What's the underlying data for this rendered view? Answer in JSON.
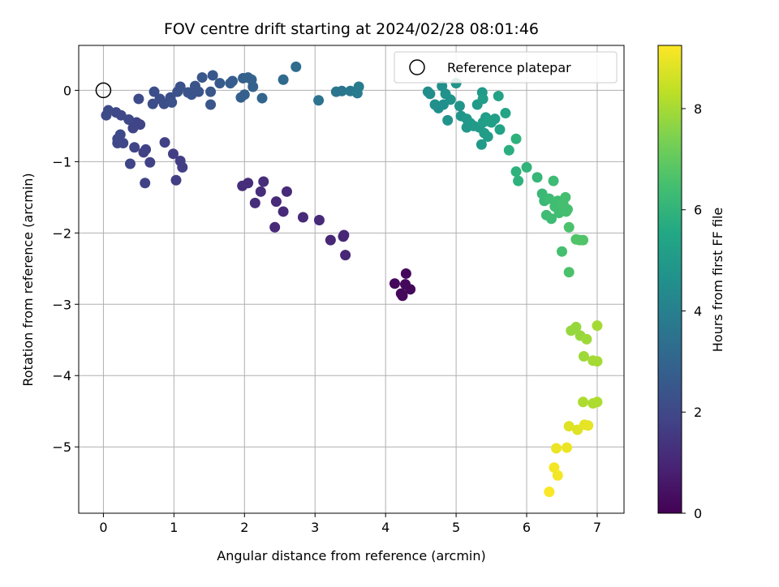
{
  "chart_data": {
    "type": "scatter",
    "title": "FOV centre drift starting at 2024/02/28 08:01:46",
    "xlabel": "Angular distance from reference (arcmin)",
    "ylabel": "Rotation from reference (arcmin)",
    "xlim": [
      -0.35,
      7.38
    ],
    "ylim": [
      -5.93,
      0.63
    ],
    "xticks": [
      0,
      1,
      2,
      3,
      4,
      5,
      6,
      7
    ],
    "yticks": [
      0,
      -1,
      -2,
      -3,
      -4,
      -5
    ],
    "grid": true,
    "legend": {
      "placement": "top-right",
      "entries": [
        "Reference platepar"
      ]
    },
    "reference_point": {
      "x": 0,
      "y": 0
    },
    "colorbar": {
      "label": "Hours from first FF file",
      "colormap": "viridis",
      "range": [
        0,
        9.25
      ],
      "ticks": [
        0,
        2,
        4,
        6,
        8
      ]
    },
    "points": [
      {
        "x": 4.13,
        "y": -2.71,
        "h": 0.2
      },
      {
        "x": 4.22,
        "y": -2.85,
        "h": 0.2
      },
      {
        "x": 4.28,
        "y": -2.72,
        "h": 0.2
      },
      {
        "x": 4.29,
        "y": -2.57,
        "h": 0.2
      },
      {
        "x": 4.35,
        "y": -2.79,
        "h": 0.2
      },
      {
        "x": 4.24,
        "y": -2.88,
        "h": 0.2
      },
      {
        "x": 3.43,
        "y": -2.31,
        "h": 1.0
      },
      {
        "x": 3.41,
        "y": -2.03,
        "h": 1.0
      },
      {
        "x": 3.4,
        "y": -2.05,
        "h": 1.0
      },
      {
        "x": 3.22,
        "y": -2.1,
        "h": 1.0
      },
      {
        "x": 3.06,
        "y": -1.82,
        "h": 1.1
      },
      {
        "x": 2.83,
        "y": -1.78,
        "h": 1.1
      },
      {
        "x": 2.55,
        "y": -1.7,
        "h": 1.1
      },
      {
        "x": 2.6,
        "y": -1.42,
        "h": 1.1
      },
      {
        "x": 2.43,
        "y": -1.92,
        "h": 1.1
      },
      {
        "x": 2.45,
        "y": -1.56,
        "h": 1.1
      },
      {
        "x": 2.27,
        "y": -1.28,
        "h": 1.2
      },
      {
        "x": 2.23,
        "y": -1.42,
        "h": 1.2
      },
      {
        "x": 2.15,
        "y": -1.58,
        "h": 1.2
      },
      {
        "x": 2.05,
        "y": -1.3,
        "h": 1.2
      },
      {
        "x": 1.97,
        "y": -1.34,
        "h": 1.2
      },
      {
        "x": 1.12,
        "y": -1.08,
        "h": 1.7
      },
      {
        "x": 1.09,
        "y": -0.99,
        "h": 1.7
      },
      {
        "x": 1.03,
        "y": -1.26,
        "h": 1.7
      },
      {
        "x": 0.99,
        "y": -0.89,
        "h": 1.7
      },
      {
        "x": 0.87,
        "y": -0.73,
        "h": 1.8
      },
      {
        "x": 0.66,
        "y": -1.01,
        "h": 1.8
      },
      {
        "x": 0.6,
        "y": -0.83,
        "h": 1.8
      },
      {
        "x": 0.57,
        "y": -0.87,
        "h": 1.8
      },
      {
        "x": 0.59,
        "y": -1.3,
        "h": 1.8
      },
      {
        "x": 0.44,
        "y": -0.8,
        "h": 1.9
      },
      {
        "x": 0.38,
        "y": -1.03,
        "h": 1.9
      },
      {
        "x": 0.52,
        "y": -0.48,
        "h": 1.9
      },
      {
        "x": 0.47,
        "y": -0.45,
        "h": 1.9
      },
      {
        "x": 0.42,
        "y": -0.53,
        "h": 1.9
      },
      {
        "x": 0.36,
        "y": -0.41,
        "h": 2.0
      },
      {
        "x": 0.28,
        "y": -0.74,
        "h": 2.0
      },
      {
        "x": 0.24,
        "y": -0.62,
        "h": 2.0
      },
      {
        "x": 0.2,
        "y": -0.74,
        "h": 2.0
      },
      {
        "x": 0.2,
        "y": -0.68,
        "h": 2.0
      },
      {
        "x": 0.25,
        "y": -0.35,
        "h": 2.0
      },
      {
        "x": 0.18,
        "y": -0.31,
        "h": 2.0
      },
      {
        "x": 0.07,
        "y": -0.28,
        "h": 2.1
      },
      {
        "x": 0.04,
        "y": -0.35,
        "h": 2.1
      },
      {
        "x": 0.5,
        "y": -0.12,
        "h": 2.1
      },
      {
        "x": 0.7,
        "y": -0.19,
        "h": 2.2
      },
      {
        "x": 0.72,
        "y": -0.02,
        "h": 2.2
      },
      {
        "x": 0.8,
        "y": -0.12,
        "h": 2.2
      },
      {
        "x": 0.86,
        "y": -0.19,
        "h": 2.2
      },
      {
        "x": 0.95,
        "y": -0.1,
        "h": 2.2
      },
      {
        "x": 0.97,
        "y": -0.17,
        "h": 2.3
      },
      {
        "x": 1.05,
        "y": -0.02,
        "h": 2.3
      },
      {
        "x": 1.09,
        "y": 0.05,
        "h": 2.3
      },
      {
        "x": 1.2,
        "y": -0.03,
        "h": 2.4
      },
      {
        "x": 1.25,
        "y": -0.06,
        "h": 2.4
      },
      {
        "x": 1.3,
        "y": 0.06,
        "h": 2.4
      },
      {
        "x": 1.35,
        "y": -0.02,
        "h": 2.4
      },
      {
        "x": 1.4,
        "y": 0.18,
        "h": 2.5
      },
      {
        "x": 1.52,
        "y": -0.02,
        "h": 2.5
      },
      {
        "x": 1.52,
        "y": -0.2,
        "h": 2.5
      },
      {
        "x": 1.55,
        "y": 0.21,
        "h": 2.5
      },
      {
        "x": 1.65,
        "y": 0.1,
        "h": 2.6
      },
      {
        "x": 1.8,
        "y": 0.1,
        "h": 2.7
      },
      {
        "x": 1.83,
        "y": 0.13,
        "h": 2.7
      },
      {
        "x": 1.95,
        "y": -0.1,
        "h": 2.8
      },
      {
        "x": 2.0,
        "y": -0.06,
        "h": 2.8
      },
      {
        "x": 1.98,
        "y": 0.17,
        "h": 2.8
      },
      {
        "x": 2.05,
        "y": 0.18,
        "h": 2.9
      },
      {
        "x": 2.1,
        "y": 0.15,
        "h": 2.9
      },
      {
        "x": 2.12,
        "y": 0.05,
        "h": 2.9
      },
      {
        "x": 2.25,
        "y": -0.11,
        "h": 3.0
      },
      {
        "x": 2.55,
        "y": 0.15,
        "h": 3.2
      },
      {
        "x": 2.73,
        "y": 0.33,
        "h": 3.3
      },
      {
        "x": 3.05,
        "y": -0.14,
        "h": 3.5
      },
      {
        "x": 3.3,
        "y": -0.02,
        "h": 3.6
      },
      {
        "x": 3.38,
        "y": -0.01,
        "h": 3.6
      },
      {
        "x": 3.5,
        "y": -0.01,
        "h": 3.7
      },
      {
        "x": 3.6,
        "y": -0.04,
        "h": 3.8
      },
      {
        "x": 3.62,
        "y": 0.05,
        "h": 3.8
      },
      {
        "x": 4.6,
        "y": -0.02,
        "h": 4.5
      },
      {
        "x": 4.63,
        "y": -0.05,
        "h": 4.5
      },
      {
        "x": 4.7,
        "y": -0.2,
        "h": 4.6
      },
      {
        "x": 4.75,
        "y": -0.25,
        "h": 4.6
      },
      {
        "x": 4.8,
        "y": 0.06,
        "h": 4.6
      },
      {
        "x": 4.82,
        "y": -0.2,
        "h": 4.6
      },
      {
        "x": 4.85,
        "y": -0.05,
        "h": 4.7
      },
      {
        "x": 4.88,
        "y": -0.42,
        "h": 4.7
      },
      {
        "x": 4.92,
        "y": -0.13,
        "h": 4.7
      },
      {
        "x": 5.0,
        "y": 0.1,
        "h": 4.8
      },
      {
        "x": 5.05,
        "y": -0.22,
        "h": 4.8
      },
      {
        "x": 5.07,
        "y": -0.36,
        "h": 4.8
      },
      {
        "x": 5.15,
        "y": -0.4,
        "h": 4.9
      },
      {
        "x": 5.15,
        "y": -0.52,
        "h": 4.9
      },
      {
        "x": 5.2,
        "y": -0.46,
        "h": 4.9
      },
      {
        "x": 5.25,
        "y": -0.5,
        "h": 5.0
      },
      {
        "x": 5.3,
        "y": -0.2,
        "h": 5.0
      },
      {
        "x": 5.33,
        "y": -0.52,
        "h": 5.0
      },
      {
        "x": 5.36,
        "y": -0.76,
        "h": 5.0
      },
      {
        "x": 5.37,
        "y": -0.03,
        "h": 5.0
      },
      {
        "x": 5.38,
        "y": -0.12,
        "h": 5.1
      },
      {
        "x": 5.38,
        "y": -0.45,
        "h": 5.1
      },
      {
        "x": 5.4,
        "y": -0.6,
        "h": 5.1
      },
      {
        "x": 5.42,
        "y": -0.38,
        "h": 5.1
      },
      {
        "x": 5.45,
        "y": -0.65,
        "h": 5.1
      },
      {
        "x": 5.45,
        "y": -0.43,
        "h": 5.2
      },
      {
        "x": 5.5,
        "y": -0.45,
        "h": 5.2
      },
      {
        "x": 5.55,
        "y": -0.4,
        "h": 5.2
      },
      {
        "x": 5.6,
        "y": -0.08,
        "h": 5.3
      },
      {
        "x": 5.62,
        "y": -0.55,
        "h": 5.3
      },
      {
        "x": 5.7,
        "y": -0.32,
        "h": 5.4
      },
      {
        "x": 5.75,
        "y": -0.84,
        "h": 5.8
      },
      {
        "x": 5.85,
        "y": -0.68,
        "h": 5.9
      },
      {
        "x": 5.85,
        "y": -1.14,
        "h": 5.9
      },
      {
        "x": 5.88,
        "y": -1.27,
        "h": 5.9
      },
      {
        "x": 6.0,
        "y": -1.08,
        "h": 6.0
      },
      {
        "x": 6.15,
        "y": -1.22,
        "h": 6.1
      },
      {
        "x": 6.22,
        "y": -1.45,
        "h": 6.2
      },
      {
        "x": 6.25,
        "y": -1.55,
        "h": 6.2
      },
      {
        "x": 6.28,
        "y": -1.75,
        "h": 6.3
      },
      {
        "x": 6.32,
        "y": -1.52,
        "h": 6.3
      },
      {
        "x": 6.35,
        "y": -1.8,
        "h": 6.3
      },
      {
        "x": 6.38,
        "y": -1.27,
        "h": 6.3
      },
      {
        "x": 6.4,
        "y": -1.63,
        "h": 6.4
      },
      {
        "x": 6.44,
        "y": -1.55,
        "h": 6.4
      },
      {
        "x": 6.46,
        "y": -1.72,
        "h": 6.4
      },
      {
        "x": 6.48,
        "y": -1.64,
        "h": 6.4
      },
      {
        "x": 6.5,
        "y": -1.57,
        "h": 6.4
      },
      {
        "x": 6.52,
        "y": -1.6,
        "h": 6.5
      },
      {
        "x": 6.5,
        "y": -2.26,
        "h": 6.5
      },
      {
        "x": 6.55,
        "y": -1.5,
        "h": 6.5
      },
      {
        "x": 6.56,
        "y": -1.7,
        "h": 6.5
      },
      {
        "x": 6.58,
        "y": -1.67,
        "h": 6.5
      },
      {
        "x": 6.6,
        "y": -2.55,
        "h": 6.6
      },
      {
        "x": 6.6,
        "y": -1.92,
        "h": 6.6
      },
      {
        "x": 6.7,
        "y": -2.09,
        "h": 6.7
      },
      {
        "x": 6.75,
        "y": -2.1,
        "h": 6.7
      },
      {
        "x": 6.8,
        "y": -2.1,
        "h": 6.7
      },
      {
        "x": 6.63,
        "y": -3.37,
        "h": 7.8
      },
      {
        "x": 6.7,
        "y": -3.32,
        "h": 7.8
      },
      {
        "x": 6.76,
        "y": -3.44,
        "h": 7.8
      },
      {
        "x": 6.85,
        "y": -3.49,
        "h": 7.9
      },
      {
        "x": 6.81,
        "y": -3.73,
        "h": 7.9
      },
      {
        "x": 6.94,
        "y": -3.79,
        "h": 8.0
      },
      {
        "x": 7.0,
        "y": -3.8,
        "h": 8.0
      },
      {
        "x": 7.0,
        "y": -3.3,
        "h": 8.0
      },
      {
        "x": 6.8,
        "y": -4.37,
        "h": 8.1
      },
      {
        "x": 6.94,
        "y": -4.39,
        "h": 8.1
      },
      {
        "x": 7.0,
        "y": -4.37,
        "h": 8.1
      },
      {
        "x": 6.6,
        "y": -4.71,
        "h": 8.8
      },
      {
        "x": 6.72,
        "y": -4.76,
        "h": 8.8
      },
      {
        "x": 6.82,
        "y": -4.69,
        "h": 8.9
      },
      {
        "x": 6.87,
        "y": -4.7,
        "h": 8.9
      },
      {
        "x": 6.42,
        "y": -5.02,
        "h": 9.0
      },
      {
        "x": 6.57,
        "y": -5.01,
        "h": 9.0
      },
      {
        "x": 6.39,
        "y": -5.29,
        "h": 9.1
      },
      {
        "x": 6.44,
        "y": -5.4,
        "h": 9.1
      },
      {
        "x": 6.32,
        "y": -5.63,
        "h": 9.2
      }
    ]
  }
}
